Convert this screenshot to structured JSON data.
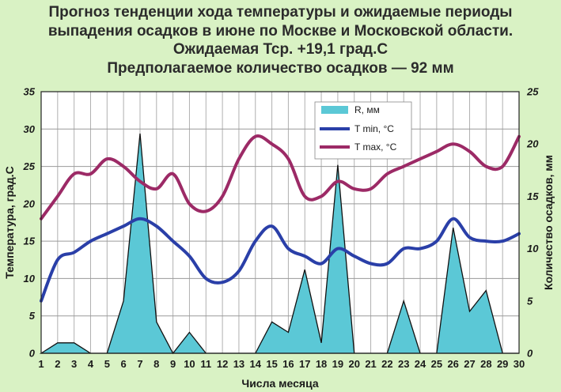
{
  "title_lines": [
    "Прогноз тенденции хода температуры и ожидаемые периоды",
    "выпадения осадков в июне по Москве и Московской области.",
    "Ожидаемая Тср. +19,1 град.С",
    "Предполагаемое количество осадков — 92 мм"
  ],
  "colors": {
    "background": "#d9f2c4",
    "plot_background": "#ffffff",
    "precip_fill": "#5bc8d6",
    "tmin_line": "#2a3fa8",
    "tmax_line": "#9c2a66"
  },
  "chart_data": {
    "type": "line",
    "xlabel": "Числа месяца",
    "ylabel": "Температура, град.С",
    "y2label": "Количество осадков, мм",
    "x": [
      1,
      2,
      3,
      4,
      5,
      6,
      7,
      8,
      9,
      10,
      11,
      12,
      13,
      14,
      15,
      16,
      17,
      18,
      19,
      20,
      21,
      22,
      23,
      24,
      25,
      26,
      27,
      28,
      29,
      30
    ],
    "xlim": [
      1,
      30
    ],
    "ylim": [
      0,
      35
    ],
    "y_ticks": [
      0,
      5,
      10,
      15,
      20,
      25,
      30,
      35
    ],
    "y2lim": [
      0,
      25
    ],
    "y2_ticks": [
      0,
      5,
      10,
      15,
      20,
      25
    ],
    "grid": true,
    "legend_position": "top-center",
    "series": [
      {
        "name": "R, мм",
        "kind": "area",
        "axis": "right",
        "values": [
          0,
          1,
          1,
          0,
          0,
          5,
          21,
          3,
          0,
          2,
          0,
          0,
          0,
          0,
          3,
          2,
          8,
          1,
          18,
          0,
          0,
          0,
          5,
          0,
          0,
          12,
          4,
          6,
          0,
          0
        ]
      },
      {
        "name": "T min, °C",
        "kind": "line",
        "axis": "left",
        "values": [
          7,
          12.5,
          13.5,
          15,
          16,
          17,
          18,
          17,
          15,
          13,
          10,
          9.5,
          11,
          15,
          17,
          14,
          13,
          12,
          14,
          13,
          12,
          12,
          14,
          14,
          15,
          18,
          15.5,
          15,
          15,
          16
        ]
      },
      {
        "name": "T max, °C",
        "kind": "line",
        "axis": "left",
        "values": [
          18,
          21,
          24,
          24,
          26,
          25,
          23,
          22,
          24,
          20,
          19,
          21,
          26,
          29,
          28,
          26,
          21,
          21,
          23,
          22,
          22,
          24,
          25,
          26,
          27,
          28,
          27,
          25,
          25,
          29
        ]
      }
    ]
  }
}
